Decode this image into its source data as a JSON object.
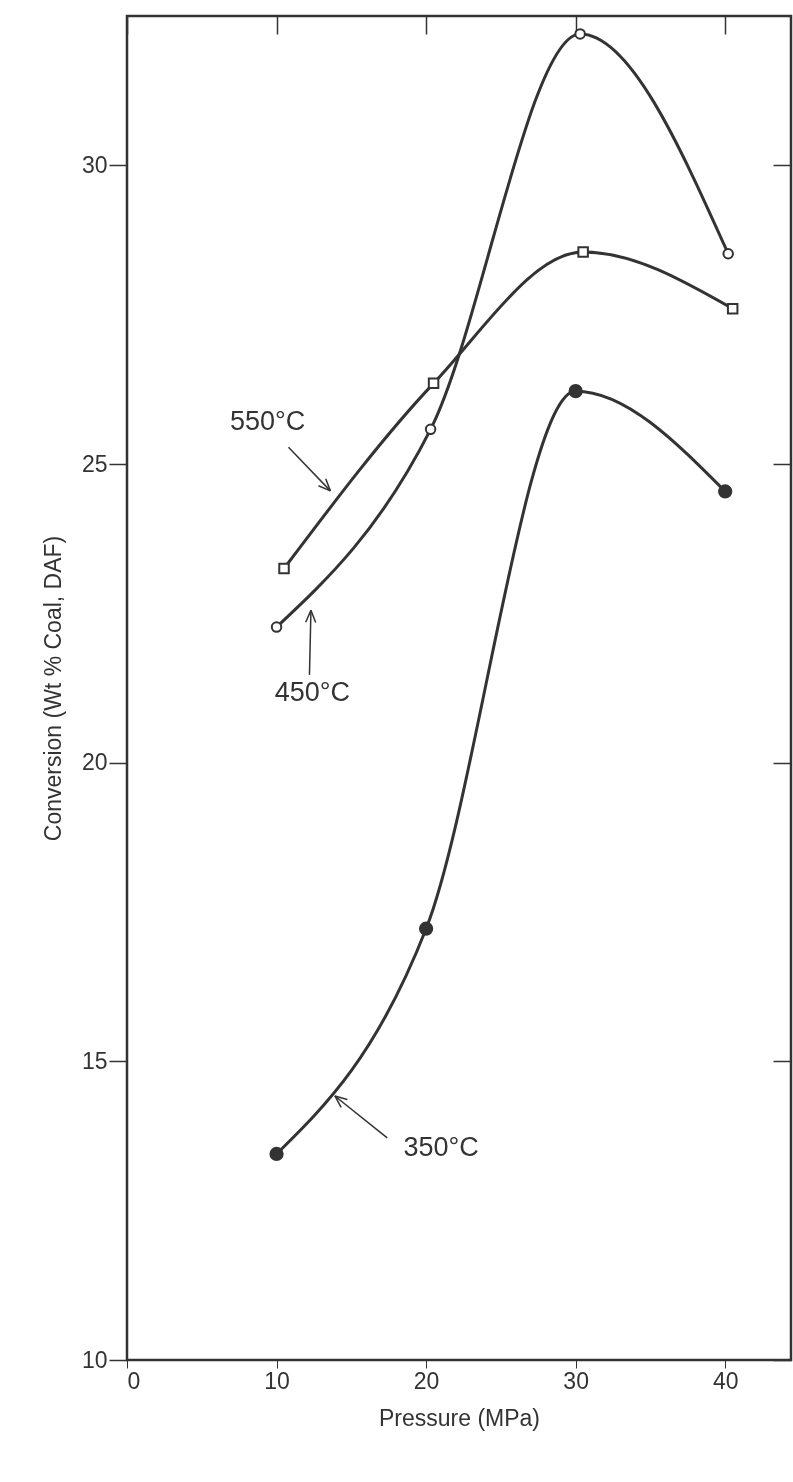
{
  "chart_data": {
    "type": "line",
    "xlabel": "Pressure (MPa)",
    "ylabel": "Conversion (Wt % Coal, DAF)",
    "xlim": [
      0,
      44.4
    ],
    "ylim": [
      10,
      32.5
    ],
    "xticks": [
      0,
      10,
      20,
      30,
      40
    ],
    "yticks": [
      10,
      15,
      20,
      25,
      30
    ],
    "grid": false,
    "series": [
      {
        "name": "350°C",
        "color": "#333333",
        "marker": "circle",
        "x": [
          10,
          20,
          30,
          40
        ],
        "values": [
          13.45,
          17.22,
          26.22,
          24.54
        ]
      },
      {
        "name": "450°C",
        "color": "#333333",
        "marker": "circle",
        "x": [
          10,
          20.3,
          30.3,
          40.2
        ],
        "values": [
          22.27,
          25.58,
          32.2,
          28.52
        ]
      },
      {
        "name": "550°C",
        "color": "#333333",
        "marker": "square",
        "x": [
          10.5,
          20.5,
          30.5,
          40.5
        ],
        "values": [
          23.25,
          26.35,
          28.55,
          27.6
        ]
      }
    ]
  }
}
